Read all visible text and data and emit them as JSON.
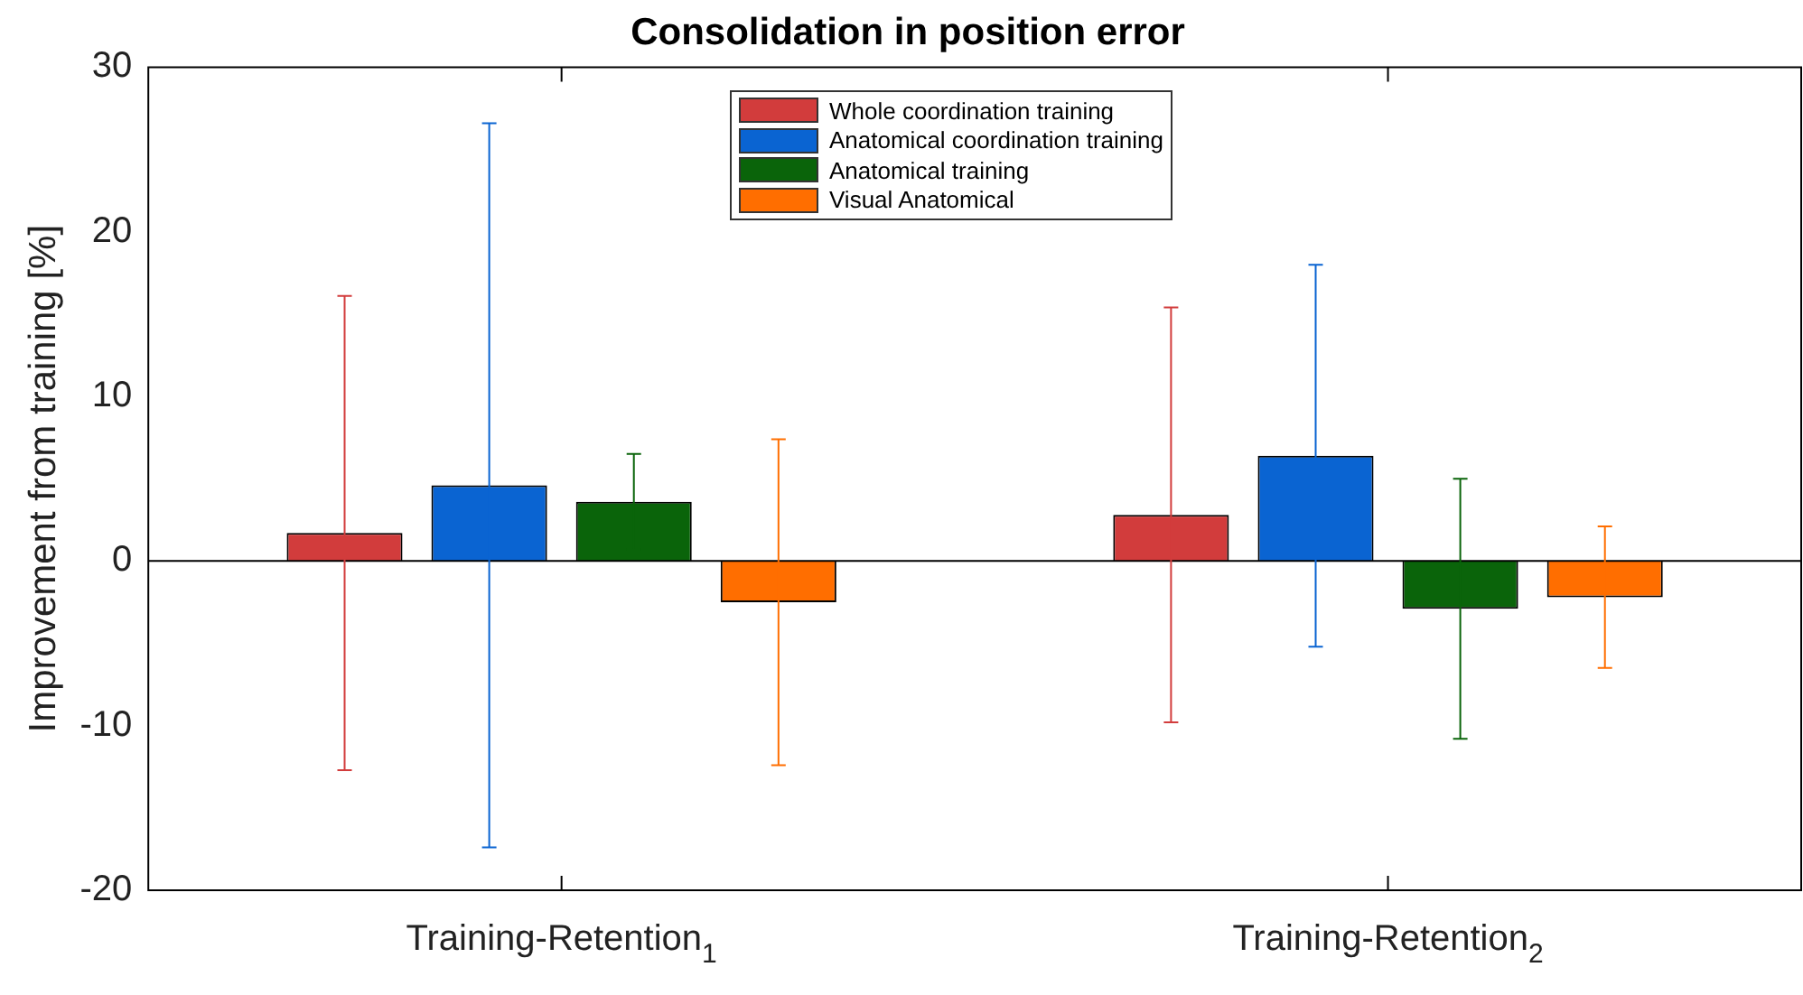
{
  "chart_data": {
    "type": "bar",
    "title": "Consolidation in position error",
    "ylabel": "Improvement from training [%]",
    "categories": [
      "Training-Retention$_{1}$",
      "Training-Retention$_{2}$"
    ],
    "series": [
      {
        "name": "Whole coordination training",
        "color": "#d23c3c",
        "values": [
          1.7,
          2.8
        ],
        "errors": [
          14.4,
          12.6
        ]
      },
      {
        "name": "Anatomical coordination training",
        "color": "#0a64d2",
        "values": [
          4.6,
          6.4
        ],
        "errors": [
          22,
          11.6
        ]
      },
      {
        "name": "Anatomical training",
        "color": "#0a640a",
        "values": [
          3.6,
          -2.9
        ],
        "errors": [
          2.9,
          7.9
        ]
      },
      {
        "name": "Visual Anatomical",
        "color": "#ff6e00",
        "values": [
          -2.5,
          -2.2
        ],
        "errors": [
          9.9,
          4.3
        ]
      }
    ],
    "ylim": [
      -20,
      30
    ],
    "yticks": [
      -20,
      -10,
      0,
      10,
      20,
      30
    ],
    "grid": false,
    "legend": "top",
    "ref_lines": [
      {
        "axis": "y",
        "value": 0,
        "color": "#000000"
      }
    ]
  }
}
